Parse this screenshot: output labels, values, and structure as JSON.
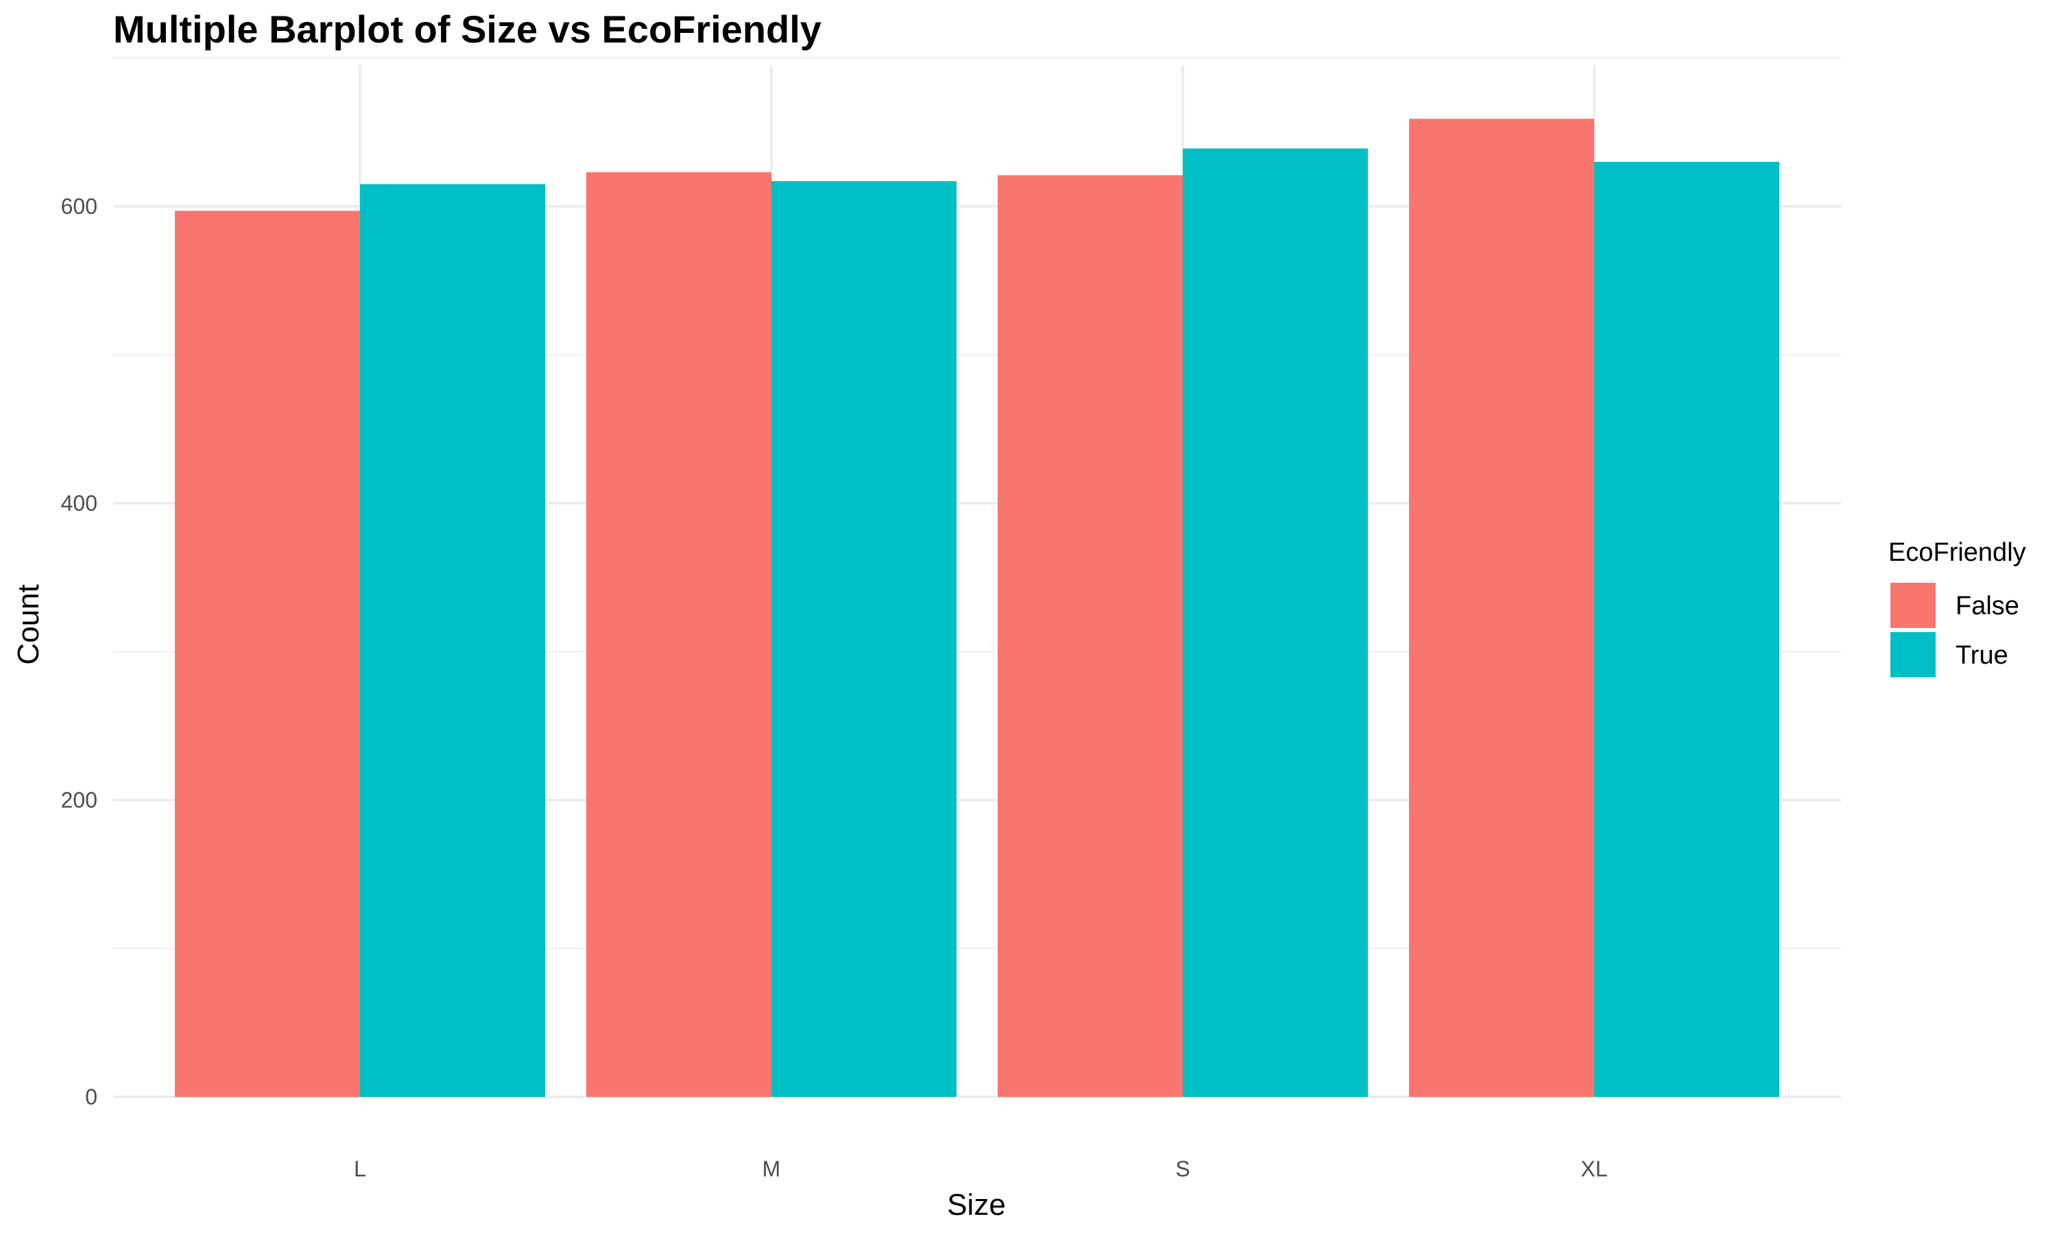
{
  "chart_data": {
    "type": "bar",
    "title": "Multiple Barplot of Size vs EcoFriendly",
    "xlabel": "Size",
    "ylabel": "Count",
    "categories": [
      "L",
      "M",
      "S",
      "XL"
    ],
    "series": [
      {
        "name": "False",
        "color": "#F8766D",
        "values": [
          597,
          623,
          621,
          659
        ]
      },
      {
        "name": "True",
        "color": "#00BFC4",
        "values": [
          615,
          617,
          639,
          630
        ]
      }
    ],
    "ylim": [
      0,
      700
    ],
    "yticks": [
      0,
      200,
      400,
      600
    ],
    "ytick_labels": [
      "0",
      "200",
      "400",
      "600"
    ],
    "grid": true,
    "legend": {
      "title": "EcoFriendly",
      "position": "right"
    }
  }
}
